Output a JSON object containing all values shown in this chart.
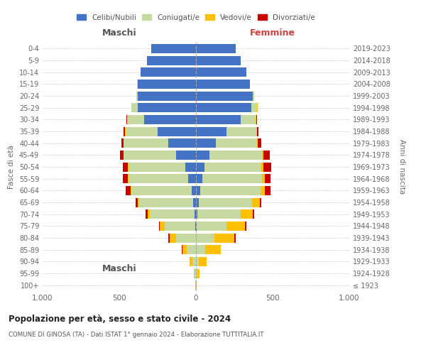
{
  "age_groups": [
    "100+",
    "95-99",
    "90-94",
    "85-89",
    "80-84",
    "75-79",
    "70-74",
    "65-69",
    "60-64",
    "55-59",
    "50-54",
    "45-49",
    "40-44",
    "35-39",
    "30-34",
    "25-29",
    "20-24",
    "15-19",
    "10-14",
    "5-9",
    "0-4"
  ],
  "birth_years": [
    "≤ 1923",
    "1924-1928",
    "1929-1933",
    "1934-1938",
    "1939-1943",
    "1944-1948",
    "1949-1953",
    "1954-1958",
    "1959-1963",
    "1964-1968",
    "1969-1973",
    "1974-1978",
    "1979-1983",
    "1984-1988",
    "1989-1993",
    "1994-1998",
    "1999-2003",
    "2004-2008",
    "2009-2013",
    "2014-2018",
    "2019-2023"
  ],
  "male": {
    "celibi": [
      0,
      0,
      0,
      0,
      0,
      5,
      10,
      20,
      30,
      50,
      70,
      130,
      180,
      250,
      340,
      380,
      380,
      380,
      360,
      320,
      290
    ],
    "coniugati": [
      2,
      8,
      25,
      60,
      130,
      200,
      290,
      350,
      390,
      390,
      370,
      340,
      290,
      210,
      110,
      40,
      10,
      5,
      0,
      0,
      0
    ],
    "vedovi": [
      1,
      5,
      15,
      30,
      40,
      30,
      15,
      10,
      5,
      5,
      3,
      2,
      1,
      1,
      0,
      0,
      0,
      0,
      0,
      0,
      0
    ],
    "divorziati": [
      0,
      0,
      0,
      2,
      10,
      8,
      15,
      15,
      35,
      30,
      35,
      25,
      15,
      10,
      5,
      3,
      0,
      0,
      0,
      0,
      0
    ]
  },
  "female": {
    "nubili": [
      0,
      0,
      0,
      0,
      0,
      5,
      10,
      20,
      30,
      40,
      55,
      90,
      130,
      200,
      290,
      360,
      370,
      350,
      330,
      290,
      260
    ],
    "coniugate": [
      2,
      8,
      20,
      60,
      120,
      195,
      280,
      345,
      390,
      390,
      370,
      340,
      270,
      195,
      100,
      40,
      10,
      3,
      0,
      0,
      0
    ],
    "vedove": [
      3,
      15,
      50,
      100,
      130,
      120,
      80,
      50,
      30,
      20,
      15,
      10,
      5,
      3,
      2,
      1,
      0,
      0,
      0,
      0,
      0
    ],
    "divorziate": [
      0,
      0,
      1,
      2,
      8,
      8,
      10,
      10,
      35,
      35,
      50,
      40,
      20,
      10,
      5,
      3,
      1,
      0,
      0,
      0,
      0
    ]
  },
  "colors": {
    "celibi": "#4472c4",
    "coniugati": "#c5d9a0",
    "vedovi": "#ffc000",
    "divorziati": "#cc0000"
  },
  "xlim": 1000,
  "title": "Popolazione per età, sesso e stato civile - 2024",
  "subtitle": "COMUNE DI GINOSA (TA) - Dati ISTAT 1° gennaio 2024 - Elaborazione TUTTITALIA.IT",
  "legend_labels": [
    "Celibi/Nubili",
    "Coniugati/e",
    "Vedovi/e",
    "Divorziati/e"
  ],
  "ylabel_left": "Fasce di età",
  "ylabel_right": "Anni di nascita",
  "xlabel_left": "Maschi",
  "xlabel_right": "Femmine"
}
